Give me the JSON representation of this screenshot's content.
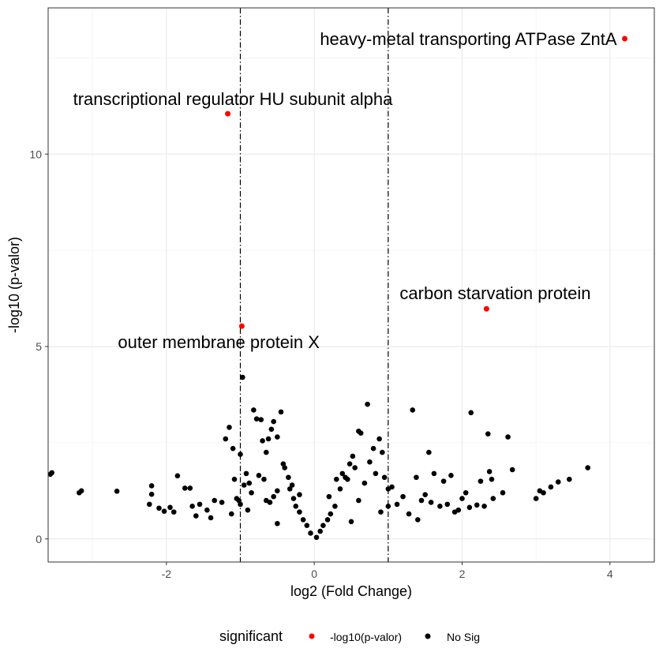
{
  "chart_data": {
    "type": "scatter",
    "title": "",
    "xlabel": "log2 (Fold Change)",
    "ylabel": "-log10 (p-valor)",
    "xlim": [
      -3.6,
      4.6
    ],
    "ylim": [
      -0.6,
      13.8
    ],
    "x_ticks": [
      -2,
      0,
      2,
      4
    ],
    "x_tick_labels": [
      "-2",
      "0",
      "2",
      "4"
    ],
    "y_ticks": [
      0,
      5,
      10
    ],
    "y_tick_labels": [
      "0",
      "5",
      "10"
    ],
    "grid": true,
    "vlines": [
      -1,
      1
    ],
    "legend": {
      "title": "significant",
      "position": "bottom",
      "entries": [
        {
          "label": "-log10(p-valor)",
          "color": "#ff0000"
        },
        {
          "label": "No Sig",
          "color": "#000000"
        }
      ]
    },
    "series": [
      {
        "name": "-log10(p-valor)",
        "color": "#ff0000",
        "points": [
          {
            "x": 4.2,
            "y": 13.0,
            "label": "heavy-metal transporting ATPase ZntA"
          },
          {
            "x": -1.17,
            "y": 11.05,
            "label": "transcriptional regulator HU subunit alpha"
          },
          {
            "x": 2.33,
            "y": 5.98,
            "label": "carbon starvation protein"
          },
          {
            "x": -0.98,
            "y": 5.53,
            "label": "outer membrane protein X"
          }
        ]
      },
      {
        "name": "No Sig",
        "color": "#000000",
        "points": [
          [
            -3.55,
            1.72
          ],
          [
            -3.57,
            1.68
          ],
          [
            -3.15,
            1.25
          ],
          [
            -3.18,
            1.2
          ],
          [
            -2.67,
            1.24
          ],
          [
            -2.2,
            1.38
          ],
          [
            -2.2,
            1.16
          ],
          [
            -2.23,
            0.9
          ],
          [
            -2.1,
            0.8
          ],
          [
            -2.03,
            0.72
          ],
          [
            -1.95,
            0.82
          ],
          [
            -1.9,
            0.7
          ],
          [
            -1.85,
            1.64
          ],
          [
            -1.75,
            1.32
          ],
          [
            -1.68,
            1.32
          ],
          [
            -1.65,
            0.85
          ],
          [
            -1.6,
            0.6
          ],
          [
            -1.55,
            0.9
          ],
          [
            -1.45,
            0.75
          ],
          [
            -1.35,
            1.0
          ],
          [
            -1.25,
            0.95
          ],
          [
            -1.2,
            2.6
          ],
          [
            -1.15,
            2.9
          ],
          [
            -1.1,
            2.35
          ],
          [
            -1.08,
            1.55
          ],
          [
            -1.05,
            1.05
          ],
          [
            -1.02,
            1.0
          ],
          [
            -1.0,
            2.2
          ],
          [
            -0.97,
            4.2
          ],
          [
            -0.92,
            1.7
          ],
          [
            -0.88,
            1.45
          ],
          [
            -0.82,
            3.35
          ],
          [
            -0.78,
            3.12
          ],
          [
            -0.72,
            3.1
          ],
          [
            -0.7,
            2.55
          ],
          [
            -0.65,
            2.25
          ],
          [
            -0.62,
            2.6
          ],
          [
            -0.58,
            2.85
          ],
          [
            -0.55,
            3.05
          ],
          [
            -0.5,
            2.65
          ],
          [
            -0.45,
            3.3
          ],
          [
            -0.42,
            1.95
          ],
          [
            -0.4,
            1.85
          ],
          [
            -0.35,
            1.6
          ],
          [
            -0.3,
            1.4
          ],
          [
            -0.75,
            1.65
          ],
          [
            -0.68,
            1.55
          ],
          [
            -0.85,
            1.2
          ],
          [
            -0.95,
            1.4
          ],
          [
            -1.12,
            0.65
          ],
          [
            -0.5,
            1.25
          ],
          [
            -0.55,
            1.1
          ],
          [
            -0.6,
            0.95
          ],
          [
            -0.33,
            1.3
          ],
          [
            -0.28,
            1.05
          ],
          [
            -0.25,
            0.85
          ],
          [
            -0.2,
            0.7
          ],
          [
            -0.15,
            0.5
          ],
          [
            -0.1,
            0.35
          ],
          [
            -0.05,
            0.15
          ],
          [
            0.03,
            0.04
          ],
          [
            0.08,
            0.2
          ],
          [
            0.12,
            0.35
          ],
          [
            0.18,
            0.5
          ],
          [
            0.22,
            0.65
          ],
          [
            0.28,
            0.85
          ],
          [
            0.3,
            1.55
          ],
          [
            0.35,
            1.3
          ],
          [
            0.38,
            1.7
          ],
          [
            0.42,
            1.6
          ],
          [
            0.45,
            1.55
          ],
          [
            0.48,
            1.95
          ],
          [
            0.52,
            2.15
          ],
          [
            0.55,
            1.85
          ],
          [
            0.6,
            2.8
          ],
          [
            0.63,
            2.75
          ],
          [
            0.68,
            1.45
          ],
          [
            0.72,
            3.5
          ],
          [
            0.75,
            2.0
          ],
          [
            0.8,
            2.35
          ],
          [
            0.83,
            1.7
          ],
          [
            0.88,
            2.6
          ],
          [
            0.92,
            2.25
          ],
          [
            0.95,
            1.6
          ],
          [
            1.0,
            1.3
          ],
          [
            1.05,
            1.35
          ],
          [
            1.12,
            0.9
          ],
          [
            1.2,
            1.1
          ],
          [
            1.28,
            0.65
          ],
          [
            1.33,
            3.35
          ],
          [
            1.38,
            1.6
          ],
          [
            1.45,
            1.0
          ],
          [
            1.5,
            1.15
          ],
          [
            1.55,
            2.25
          ],
          [
            1.58,
            0.95
          ],
          [
            1.62,
            1.7
          ],
          [
            1.7,
            0.85
          ],
          [
            1.75,
            1.5
          ],
          [
            1.8,
            0.9
          ],
          [
            1.85,
            1.65
          ],
          [
            1.9,
            0.7
          ],
          [
            1.95,
            0.75
          ],
          [
            2.0,
            1.05
          ],
          [
            2.05,
            1.2
          ],
          [
            2.1,
            0.82
          ],
          [
            2.12,
            3.28
          ],
          [
            2.2,
            0.88
          ],
          [
            2.25,
            1.5
          ],
          [
            2.3,
            0.85
          ],
          [
            2.35,
            2.73
          ],
          [
            2.37,
            1.75
          ],
          [
            2.4,
            1.55
          ],
          [
            2.42,
            1.05
          ],
          [
            2.55,
            1.2
          ],
          [
            2.62,
            2.65
          ],
          [
            2.68,
            1.8
          ],
          [
            3.0,
            1.05
          ],
          [
            3.05,
            1.25
          ],
          [
            3.1,
            1.2
          ],
          [
            3.2,
            1.35
          ],
          [
            3.3,
            1.48
          ],
          [
            3.45,
            1.55
          ],
          [
            3.7,
            1.85
          ],
          [
            1.0,
            0.85
          ],
          [
            -1.0,
            0.9
          ],
          [
            0.2,
            1.1
          ],
          [
            -0.2,
            1.15
          ],
          [
            0.6,
            1.0
          ],
          [
            -0.65,
            1.0
          ],
          [
            1.4,
            0.5
          ],
          [
            -1.4,
            0.55
          ],
          [
            0.9,
            0.7
          ],
          [
            -0.9,
            0.75
          ],
          [
            0.5,
            0.45
          ],
          [
            -0.5,
            0.4
          ]
        ]
      }
    ]
  }
}
